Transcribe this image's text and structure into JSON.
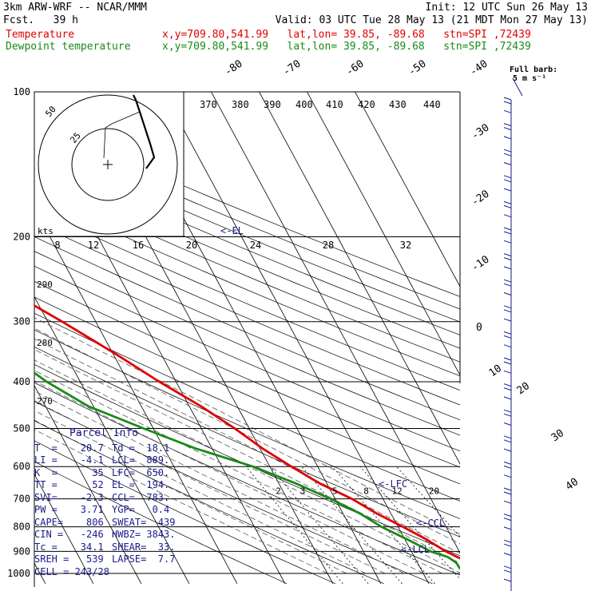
{
  "header": {
    "model": "3km ARW-WRF -- NCAR/MMM",
    "init": "Init: 12 UTC Sun 26 May 13",
    "fcst": "Fcst.   39 h",
    "valid": "Valid: 03 UTC Tue 28 May 13 (21 MDT Mon 27 May 13)",
    "temp_label": "Temperature",
    "dew_label": "Dewpoint temperature",
    "temp_info": "x,y=709.80,541.99   lat,lon= 39.85, -89.68   stn=SPI ,72439",
    "dew_info": "x,y=709.80,541.99   lat,lon= 39.85, -89.68   stn=SPI ,72439",
    "full_barb": "Full barb:",
    "full_barb_unit": "5 m s⁻¹"
  },
  "colors": {
    "temperature": "#e00000",
    "dewpoint": "#1a8a1a",
    "annotation": "#1a1a8c",
    "grid": "#000000"
  },
  "annotations": {
    "el": "<-EL",
    "lfc": "<-LFC",
    "ccl": "<-CCL",
    "lcl": "<-LCL",
    "kts": "kts"
  },
  "parcel_info": {
    "title": "Parcel Info",
    "rows": [
      [
        "T  =    20.7",
        "Td =  18.1"
      ],
      [
        "LI =    -4.1",
        "LCL=  889."
      ],
      [
        "K  =      35",
        "LFC=  650."
      ],
      [
        "TT =      52",
        "EL =  194."
      ],
      [
        "SVI=    -2.3",
        "CCL=  783."
      ],
      [
        "PW =    3.71",
        "YGP=   0.4"
      ],
      [
        "CAPE=    806",
        "SWEAT=  439"
      ],
      [
        "CIN =   -246",
        "HWBZ= 3843."
      ],
      [
        "Tc =    34.1",
        "SHEAR=  33."
      ],
      [
        "SREH =   539",
        "LAPSE=  7.7"
      ],
      [
        "CELL = 243/28",
        ""
      ]
    ]
  },
  "chart_data": {
    "type": "line",
    "title": "",
    "xlabel": "",
    "ylabel": "",
    "y_scale": "log-pressure (reversed)",
    "pressure_ticks": [
      "100",
      "200",
      "300",
      "400",
      "500",
      "600",
      "700",
      "800",
      "900",
      "1000"
    ],
    "isotherm_labels": [
      "-80",
      "-70",
      "-60",
      "-50",
      "-40",
      "-30",
      "-20",
      "-10",
      "0",
      "10",
      "20",
      "30",
      "40"
    ],
    "theta_labels": [
      "370",
      "380",
      "390",
      "400",
      "410",
      "420",
      "430",
      "440"
    ],
    "theta_lower_labels": [
      "290",
      "280",
      "270"
    ],
    "hodograph_speed_labels": [
      "8",
      "12",
      "16",
      "20",
      "24",
      "28",
      "32"
    ],
    "hodograph_ring_labels": [
      "25",
      "50"
    ],
    "mixing_ratio_labels": [
      "2",
      "3",
      "5",
      "8",
      "12",
      "20"
    ],
    "series": [
      {
        "name": "Temperature",
        "points": [
          [
            1000,
            24.0
          ],
          [
            975,
            21.2
          ],
          [
            950,
            20.7
          ],
          [
            925,
            19.0
          ],
          [
            900,
            17.2
          ],
          [
            850,
            14.5
          ],
          [
            800,
            11.0
          ],
          [
            750,
            7.0
          ],
          [
            700,
            3.5
          ],
          [
            650,
            -1.5
          ],
          [
            600,
            -5.5
          ],
          [
            550,
            -9.5
          ],
          [
            500,
            -13.0
          ],
          [
            450,
            -17.5
          ],
          [
            400,
            -23.5
          ],
          [
            350,
            -29.5
          ],
          [
            300,
            -37.0
          ],
          [
            250,
            -46.5
          ],
          [
            200,
            -56.5
          ],
          [
            175,
            -62.0
          ],
          [
            150,
            -67.5
          ],
          [
            125,
            -67.0
          ],
          [
            100,
            -69.0
          ]
        ]
      },
      {
        "name": "Dewpoint temperature",
        "points": [
          [
            1000,
            18.5
          ],
          [
            975,
            18.2
          ],
          [
            950,
            18.1
          ],
          [
            925,
            17.0
          ],
          [
            900,
            14.0
          ],
          [
            850,
            10.5
          ],
          [
            800,
            6.5
          ],
          [
            750,
            3.5
          ],
          [
            700,
            -1.0
          ],
          [
            650,
            -6.5
          ],
          [
            600,
            -13.5
          ],
          [
            550,
            -23.5
          ],
          [
            500,
            -32.0
          ],
          [
            450,
            -41.0
          ],
          [
            400,
            -47.0
          ],
          [
            350,
            -52.0
          ],
          [
            300,
            -60.0
          ],
          [
            250,
            -60.0
          ],
          [
            225,
            -58.0
          ],
          [
            200,
            -66.0
          ],
          [
            175,
            -72.0
          ],
          [
            150,
            -78.0
          ],
          [
            125,
            -83.0
          ],
          [
            100,
            -88.0
          ]
        ]
      }
    ],
    "grid": true
  }
}
